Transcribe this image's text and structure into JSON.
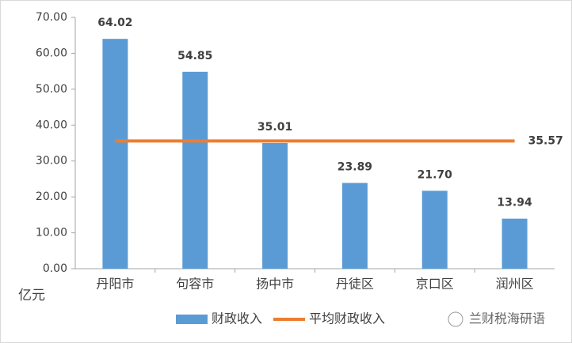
{
  "chart_data": {
    "type": "bar",
    "y_unit": "亿元",
    "categories": [
      "丹阳市",
      "句容市",
      "扬中市",
      "丹徒区",
      "京口区",
      "润州区"
    ],
    "series": [
      {
        "name": "财政收入",
        "type": "bar",
        "color": "#5b9bd5",
        "values": [
          64.02,
          54.85,
          35.01,
          23.89,
          21.7,
          13.94
        ],
        "value_labels": [
          "64.02",
          "54.85",
          "35.01",
          "23.89",
          "21.70",
          "13.94"
        ]
      },
      {
        "name": "平均财政收入",
        "type": "line",
        "color": "#ed7d31",
        "values": [
          35.57,
          35.57,
          35.57,
          35.57,
          35.57,
          35.57
        ]
      }
    ],
    "ylim": [
      0,
      70
    ],
    "yticks": [
      {
        "value": 0,
        "label": "0.00"
      },
      {
        "value": 10,
        "label": "10.00"
      },
      {
        "value": 20,
        "label": "20.00"
      },
      {
        "value": 30,
        "label": "30.00"
      },
      {
        "value": 40,
        "label": "40.00"
      },
      {
        "value": 50,
        "label": "50.00"
      },
      {
        "value": 60,
        "label": "60.00"
      },
      {
        "value": 70,
        "label": "70.00"
      }
    ],
    "grid": false,
    "legend": "bottom"
  },
  "watermark": "兰财税海研语"
}
